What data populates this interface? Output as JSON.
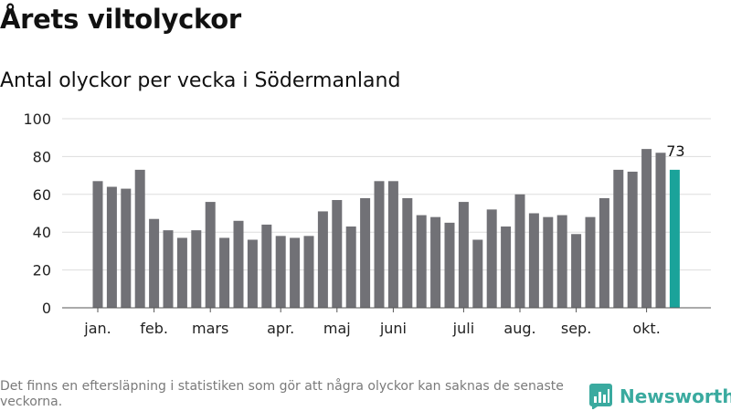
{
  "header": {
    "title": "Årets viltolyckor",
    "subtitle": "Antal olyckor per vecka i Södermanland"
  },
  "footer": {
    "note": "Det finns en eftersläpning i statistiken som gör att några olyckor kan saknas de senaste veckorna.",
    "brand": "Newsworthy",
    "brand_icon": "bar-chart-logo-icon",
    "brand_color": "#3aaa9f"
  },
  "chart_data": {
    "type": "bar",
    "title": "Antal olyckor per vecka i Södermanland",
    "xlabel": "",
    "ylabel": "",
    "ylim": [
      0,
      100
    ],
    "yticks": [
      0,
      20,
      40,
      60,
      80,
      100
    ],
    "grid": true,
    "legend": "none",
    "values": [
      67,
      64,
      63,
      73,
      47,
      41,
      37,
      41,
      56,
      37,
      46,
      36,
      44,
      38,
      37,
      38,
      51,
      57,
      43,
      58,
      67,
      67,
      58,
      49,
      48,
      45,
      56,
      36,
      52,
      43,
      60,
      50,
      48,
      49,
      39,
      48,
      58,
      73,
      72,
      84,
      82,
      73
    ],
    "month_labels": [
      {
        "label": "jan.",
        "bar": 0
      },
      {
        "label": "feb.",
        "bar": 4
      },
      {
        "label": "mars",
        "bar": 8
      },
      {
        "label": "apr.",
        "bar": 13
      },
      {
        "label": "maj",
        "bar": 17
      },
      {
        "label": "juni",
        "bar": 21
      },
      {
        "label": "juli",
        "bar": 26
      },
      {
        "label": "aug.",
        "bar": 30
      },
      {
        "label": "sep.",
        "bar": 34
      },
      {
        "label": "okt.",
        "bar": 39
      }
    ],
    "highlight_bar": 41,
    "highlight_label": "73",
    "bar_color": "#717176",
    "highlight_color": "#1aa39a",
    "grid_color": "#dddddd"
  }
}
